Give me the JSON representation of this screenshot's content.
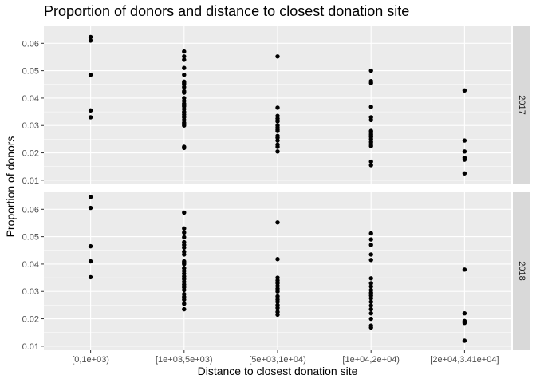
{
  "chart_data": {
    "type": "scatter",
    "title": "Proportion of  donors and distance to closest donation site",
    "xlabel": "Distance to closest donation site",
    "ylabel": "Proportion of donors",
    "categories": [
      "[0,1e+03)",
      "[1e+03,5e+03)",
      "[5e+03,1e+04)",
      "[1e+04,2e+04)",
      "[2e+04,3.41e+04]"
    ],
    "ylim": [
      0.0085,
      0.0665
    ],
    "yticks": [
      0.01,
      0.02,
      0.03,
      0.04,
      0.05,
      0.06
    ],
    "ytick_labels": [
      "0.01",
      "0.02",
      "0.03",
      "0.04",
      "0.05",
      "0.06"
    ],
    "facets": [
      {
        "label": "2017",
        "points": [
          [
            0.0623,
            0.061,
            0.0485,
            0.0355,
            0.033
          ],
          [
            0.057,
            0.0552,
            0.054,
            0.051,
            0.0485,
            0.046,
            0.0455,
            0.045,
            0.044,
            0.0425,
            0.042,
            0.04,
            0.039,
            0.038,
            0.0375,
            0.037,
            0.036,
            0.035,
            0.034,
            0.033,
            0.032,
            0.031,
            0.0305,
            0.03,
            0.0222,
            0.0218
          ],
          [
            0.0552,
            0.0365,
            0.0335,
            0.0325,
            0.0315,
            0.03,
            0.0292,
            0.0285,
            0.028,
            0.0262,
            0.0255,
            0.0245,
            0.023,
            0.0222,
            0.0205
          ],
          [
            0.05,
            0.0462,
            0.0455,
            0.0368,
            0.033,
            0.032,
            0.028,
            0.0275,
            0.0268,
            0.0262,
            0.0258,
            0.025,
            0.024,
            0.0232,
            0.0225,
            0.0168,
            0.0155
          ],
          [
            0.0428,
            0.0245,
            0.0205,
            0.0182,
            0.0175,
            0.0125
          ]
        ]
      },
      {
        "label": "2018",
        "points": [
          [
            0.0645,
            0.0605,
            0.0465,
            0.041,
            0.0352
          ],
          [
            0.0588,
            0.053,
            0.0515,
            0.0498,
            0.048,
            0.047,
            0.046,
            0.0445,
            0.0435,
            0.041,
            0.0405,
            0.04,
            0.0385,
            0.0375,
            0.0365,
            0.0355,
            0.0345,
            0.0335,
            0.0325,
            0.0315,
            0.0305,
            0.029,
            0.028,
            0.027,
            0.0255,
            0.0235
          ],
          [
            0.0552,
            0.0418,
            0.035,
            0.034,
            0.033,
            0.032,
            0.031,
            0.03,
            0.0282,
            0.027,
            0.0262,
            0.025,
            0.024,
            0.0225,
            0.0215
          ],
          [
            0.0512,
            0.049,
            0.047,
            0.0435,
            0.0415,
            0.0348,
            0.033,
            0.0318,
            0.0305,
            0.0295,
            0.0285,
            0.0275,
            0.0262,
            0.0248,
            0.0235,
            0.022,
            0.02,
            0.0175,
            0.0168
          ],
          [
            0.038,
            0.022,
            0.0192,
            0.0185,
            0.012
          ]
        ]
      }
    ]
  }
}
